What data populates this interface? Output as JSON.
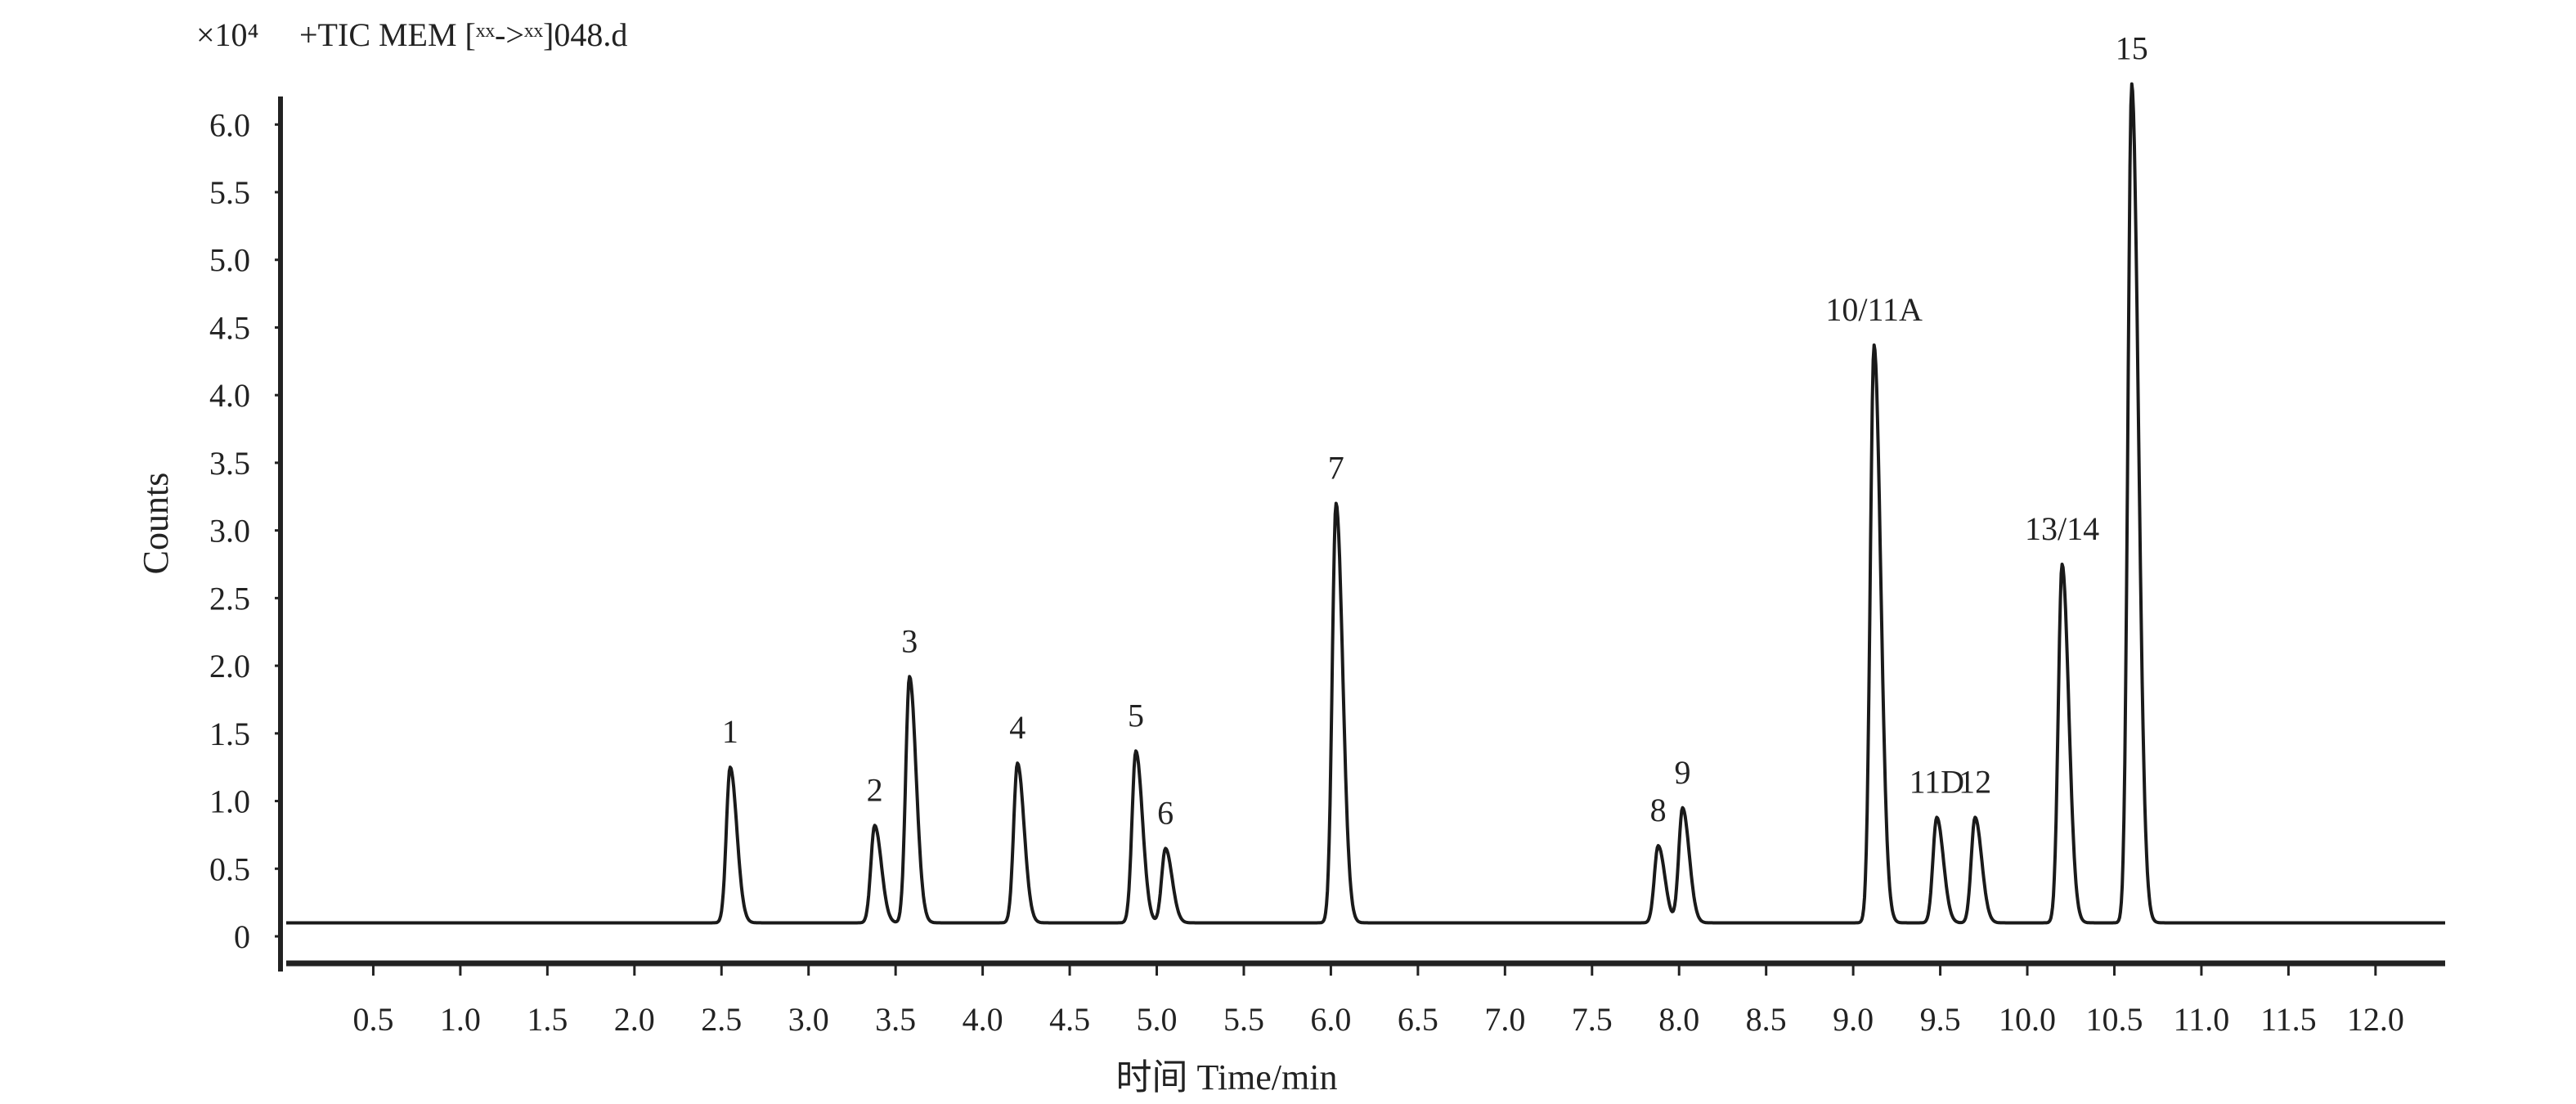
{
  "header": {
    "scale_label": "×10⁴",
    "file_label": "+TIC MEM [ˣˣ->ˣˣ]048.d"
  },
  "chart_data": {
    "type": "line",
    "title": "+TIC MEM [ˣˣ->ˣˣ]048.d",
    "xlabel": "时间 Time/min",
    "ylabel": "Counts",
    "y_multiplier": "×10⁴",
    "xlim": [
      0,
      12.4
    ],
    "ylim": [
      0,
      6.6
    ],
    "baseline": 0.1,
    "x_ticks": [
      "0.5",
      "1.0",
      "1.5",
      "2.0",
      "2.5",
      "3.0",
      "3.5",
      "4.0",
      "4.5",
      "5.0",
      "5.5",
      "6.0",
      "6.5",
      "7.0",
      "7.5",
      "8.0",
      "8.5",
      "9.0",
      "9.5",
      "10.0",
      "10.5",
      "11.0",
      "11.5",
      "12.0"
    ],
    "y_ticks": [
      "0",
      "0.5",
      "1.0",
      "1.5",
      "2.0",
      "2.5",
      "3.0",
      "3.5",
      "4.0",
      "4.5",
      "5.0",
      "5.5",
      "6.0"
    ],
    "grid": false,
    "peaks": [
      {
        "label": "1",
        "rt": 2.55,
        "height": 1.25
      },
      {
        "label": "2",
        "rt": 3.38,
        "height": 0.82
      },
      {
        "label": "3",
        "rt": 3.58,
        "height": 1.92
      },
      {
        "label": "4",
        "rt": 4.2,
        "height": 1.28
      },
      {
        "label": "5",
        "rt": 4.88,
        "height": 1.37
      },
      {
        "label": "6",
        "rt": 5.05,
        "height": 0.65
      },
      {
        "label": "7",
        "rt": 6.03,
        "height": 3.2
      },
      {
        "label": "8",
        "rt": 7.88,
        "height": 0.67
      },
      {
        "label": "9",
        "rt": 8.02,
        "height": 0.95
      },
      {
        "label": "10/11A",
        "rt": 9.12,
        "height": 4.37
      },
      {
        "label": "11D",
        "rt": 9.48,
        "height": 0.88
      },
      {
        "label": "12",
        "rt": 9.7,
        "height": 0.88
      },
      {
        "label": "13/14",
        "rt": 10.2,
        "height": 2.75
      },
      {
        "label": "15",
        "rt": 10.6,
        "height": 6.3
      }
    ]
  }
}
